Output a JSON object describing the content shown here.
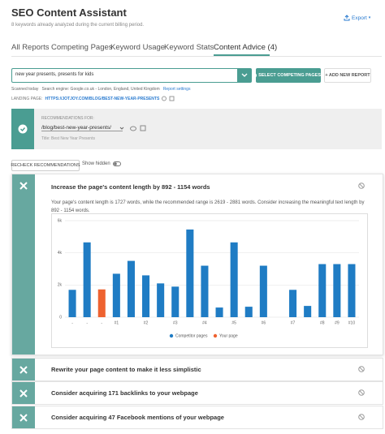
{
  "header": {
    "title": "SEO Content Assistant",
    "subtitle": "8 keywords already analyzed during the current billing period.",
    "export": "Export"
  },
  "tabs": [
    "All Reports",
    "Competing Pages",
    "Keyword Usage",
    "Keyword Stats",
    "Content Advice (4)"
  ],
  "search": {
    "query": "new year presents, presents for kids",
    "select_button": "SELECT COMPETING PAGES",
    "add_button": "+ ADD NEW REPORT"
  },
  "scan_info": {
    "scanned": "Scanned today",
    "engine": "Search engine: Google.co.uk - London, England, United Kingdom",
    "settings": "Report settings"
  },
  "landing": {
    "label": "LANDING PAGE:",
    "url": "HTTPS://JOTJOY.COM/BLOG/BEST-NEW-YEAR-PRESENTS"
  },
  "recommendations": {
    "label": "RECOMMENDATIONS FOR:",
    "path": "/blog/best-new-year-presents/",
    "title": "Title: Best New Year Presents"
  },
  "controls": {
    "recheck": "RECHECK RECOMMENDATIONS",
    "show_hidden": "Show hidden"
  },
  "advice": [
    {
      "title": "Increase the page's content length by 892 - 1154 words",
      "text": "Your page's content length is 1727 words, while the recommended range is 2619 - 2881 words. Consider increasing the meaningful text length by 892 - 1154 words."
    },
    {
      "title": "Rewrite your page content to make it less simplistic"
    },
    {
      "title": "Consider acquiring 171 backlinks to your webpage"
    },
    {
      "title": "Consider acquiring 47 Facebook mentions of your webpage"
    }
  ],
  "chart": {
    "type": "bar",
    "categories": [
      "-",
      "-",
      "-",
      "#1",
      null,
      "#2",
      null,
      "#3",
      null,
      "#4",
      null,
      "#5",
      null,
      "#6",
      null,
      "#7",
      null,
      "#8",
      "#9",
      "#10"
    ],
    "series": [
      {
        "name": "Competitor pages",
        "color": "#1f7cc4",
        "values": [
          1700,
          4650,
          null,
          2700,
          3500,
          2600,
          2100,
          1900,
          5450,
          3200,
          600,
          4650,
          650,
          3200,
          null,
          1700,
          700,
          3300,
          3300,
          3300
        ]
      },
      {
        "name": "Your page",
        "color": "#ee6230",
        "values": [
          null,
          null,
          1727,
          null,
          null,
          null,
          null,
          null,
          null,
          null,
          null,
          null,
          null,
          null,
          null,
          null,
          null,
          null,
          null,
          null
        ]
      }
    ],
    "ylim": [
      0,
      6000
    ],
    "yticks": [
      0,
      {
        "value": 2000,
        "label": "2k"
      },
      {
        "value": 4000,
        "label": "4k"
      },
      {
        "value": 6000,
        "label": "6k"
      }
    ],
    "grid": true,
    "legend": "bottom"
  }
}
